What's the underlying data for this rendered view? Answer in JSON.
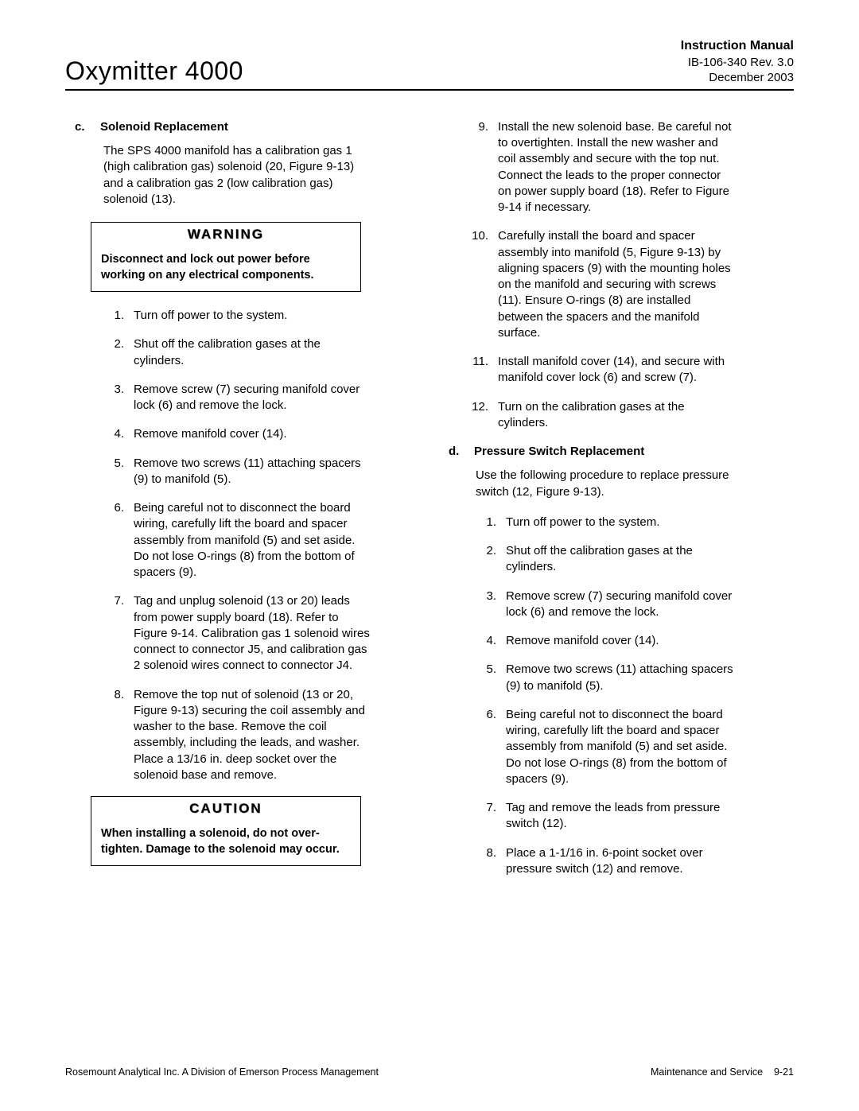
{
  "header": {
    "left_title": "Oxymitter 4000",
    "right_title": "Instruction Manual",
    "doc_number": "IB-106-340  Rev. 3.0",
    "date": "December 2003"
  },
  "col1": {
    "section_c": {
      "letter": "c.",
      "title": "Solenoid Replacement",
      "intro": "The SPS 4000 manifold has a calibration gas 1 (high calibration gas) solenoid (20, Figure 9-13) and a calibration gas 2 (low calibration gas) solenoid (13)."
    },
    "warning": {
      "label": "WARNING",
      "text": "Disconnect and lock out power before working on any electrical components."
    },
    "steps_c": [
      "Turn off power to the system.",
      "Shut off the calibration gases at the cylinders.",
      "Remove screw (7) securing manifold cover lock (6) and remove the lock.",
      "Remove manifold cover (14).",
      "Remove two screws (11) attaching spacers (9) to manifold (5).",
      "Being careful not to disconnect the board wiring, carefully lift the board and spacer assembly from manifold (5) and set aside. Do not lose O-rings (8) from the bottom of spacers (9).",
      "Tag and unplug solenoid (13 or 20) leads from power supply board (18). Refer to Figure 9-14. Calibration gas 1 solenoid wires connect to connector J5, and calibration gas 2 solenoid wires connect to connector J4.",
      "Remove the top nut of solenoid (13 or 20, Figure 9-13) securing the coil assembly and washer to the base. Remove the coil assembly, including the leads, and washer. Place a 13/16 in. deep socket over the solenoid base and remove."
    ],
    "caution": {
      "label": "CAUTION",
      "text": "When installing a solenoid, do not over-tighten. Damage to the solenoid may occur."
    }
  },
  "col2": {
    "steps_c_cont": [
      {
        "n": "9.",
        "t": "Install the new solenoid base. Be careful not to overtighten. Install the new washer and coil assembly and secure with the top nut. Connect the leads to the proper connector on power supply board (18). Refer to Figure 9-14 if necessary."
      },
      {
        "n": "10.",
        "t": "Carefully install the board and spacer assembly into manifold (5, Figure 9-13) by aligning spacers (9) with the mounting holes on the manifold and securing with screws (11). Ensure O-rings (8) are installed between the spacers and the manifold surface."
      },
      {
        "n": "11.",
        "t": "Install manifold cover (14), and secure with manifold cover lock (6) and screw (7)."
      },
      {
        "n": "12.",
        "t": "Turn on the calibration gases at the cylinders."
      }
    ],
    "section_d": {
      "letter": "d.",
      "title": "Pressure Switch Replacement",
      "intro": "Use the following procedure to replace pressure switch (12, Figure 9-13)."
    },
    "steps_d": [
      "Turn off power to the system.",
      "Shut off the calibration gases at the cylinders.",
      "Remove screw (7) securing manifold cover lock (6) and remove the lock.",
      "Remove manifold cover (14).",
      "Remove two screws (11) attaching spacers (9) to manifold (5).",
      "Being careful not to disconnect the board wiring, carefully lift the board and spacer assembly from manifold (5) and set aside. Do not lose O-rings (8) from the bottom of spacers (9).",
      "Tag and remove the leads from pressure switch (12).",
      "Place a 1-1/16 in. 6-point socket over pressure switch (12) and remove."
    ]
  },
  "footer": {
    "left": "Rosemount Analytical Inc.    A Division of Emerson Process Management",
    "right_label": "Maintenance and Service",
    "page": "9-21"
  }
}
